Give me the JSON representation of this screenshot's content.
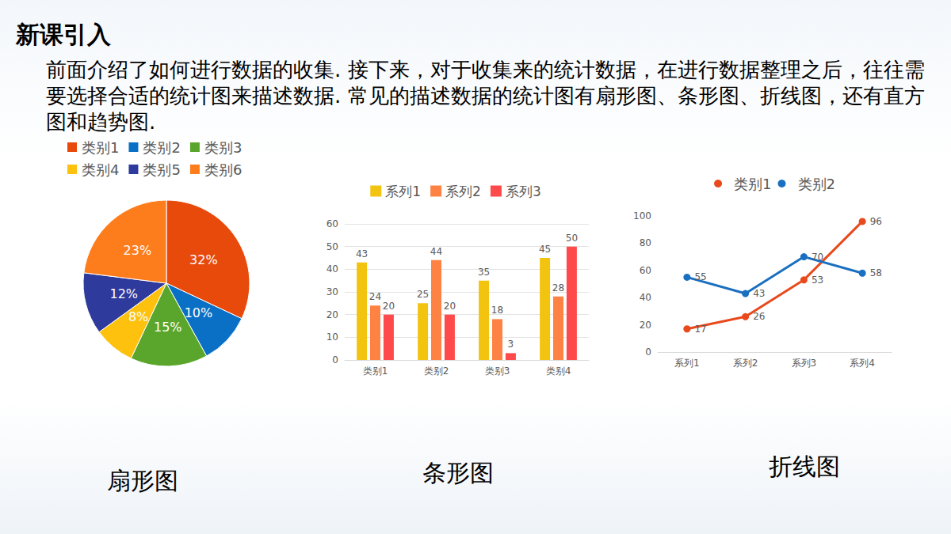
{
  "header": {
    "title": "新课引入",
    "text": "前面介绍了如何进行数据的收集. 接下来，对于收集来的统计数据，在进行数据整理之后，往往需要选择合适的统计图来描述数据. 常见的描述数据的统计图有扇形图、条形图、折线图，还有直方图和趋势图."
  },
  "chart_data": [
    {
      "type": "pie",
      "title": "扇形图",
      "categories": [
        "类别1",
        "类别2",
        "类别3",
        "类别4",
        "类别5",
        "类别6"
      ],
      "values": [
        32,
        10,
        15,
        8,
        12,
        23
      ],
      "value_labels": [
        "32%",
        "10%",
        "15%",
        "8%",
        "12%",
        "23%"
      ],
      "colors": [
        "#e84a0c",
        "#0a70c6",
        "#5aa62c",
        "#fdc10e",
        "#2e3a9c",
        "#fd7c1c"
      ],
      "data_labels": true,
      "legend": "top"
    },
    {
      "type": "bar",
      "title": "条形图",
      "categories": [
        "类别1",
        "类别2",
        "类别3",
        "类别4"
      ],
      "series": [
        {
          "name": "系列1",
          "color": "#f2c40f",
          "values": [
            43,
            25,
            35,
            45
          ]
        },
        {
          "name": "系列2",
          "color": "#fe8243",
          "values": [
            24,
            44,
            18,
            28
          ]
        },
        {
          "name": "系列3",
          "color": "#fe4a4a",
          "values": [
            20,
            20,
            3,
            50
          ]
        }
      ],
      "ylim": [
        0,
        60
      ],
      "yticks": [
        0,
        10,
        20,
        30,
        40,
        50,
        60
      ],
      "grid": true,
      "data_labels": true,
      "legend": "top"
    },
    {
      "type": "line",
      "title": "折线图",
      "categories": [
        "系列1",
        "系列2",
        "系列3",
        "系列4"
      ],
      "series": [
        {
          "name": "类别1",
          "color": "#e8491d",
          "values": [
            17,
            26,
            53,
            96
          ]
        },
        {
          "name": "类别2",
          "color": "#1a6fc0",
          "values": [
            55,
            43,
            70,
            58
          ]
        }
      ],
      "ylim": [
        0,
        100
      ],
      "yticks": [
        0,
        20,
        40,
        60,
        80,
        100
      ],
      "grid": false,
      "data_labels": true,
      "marker": "circle",
      "legend": "top"
    }
  ]
}
